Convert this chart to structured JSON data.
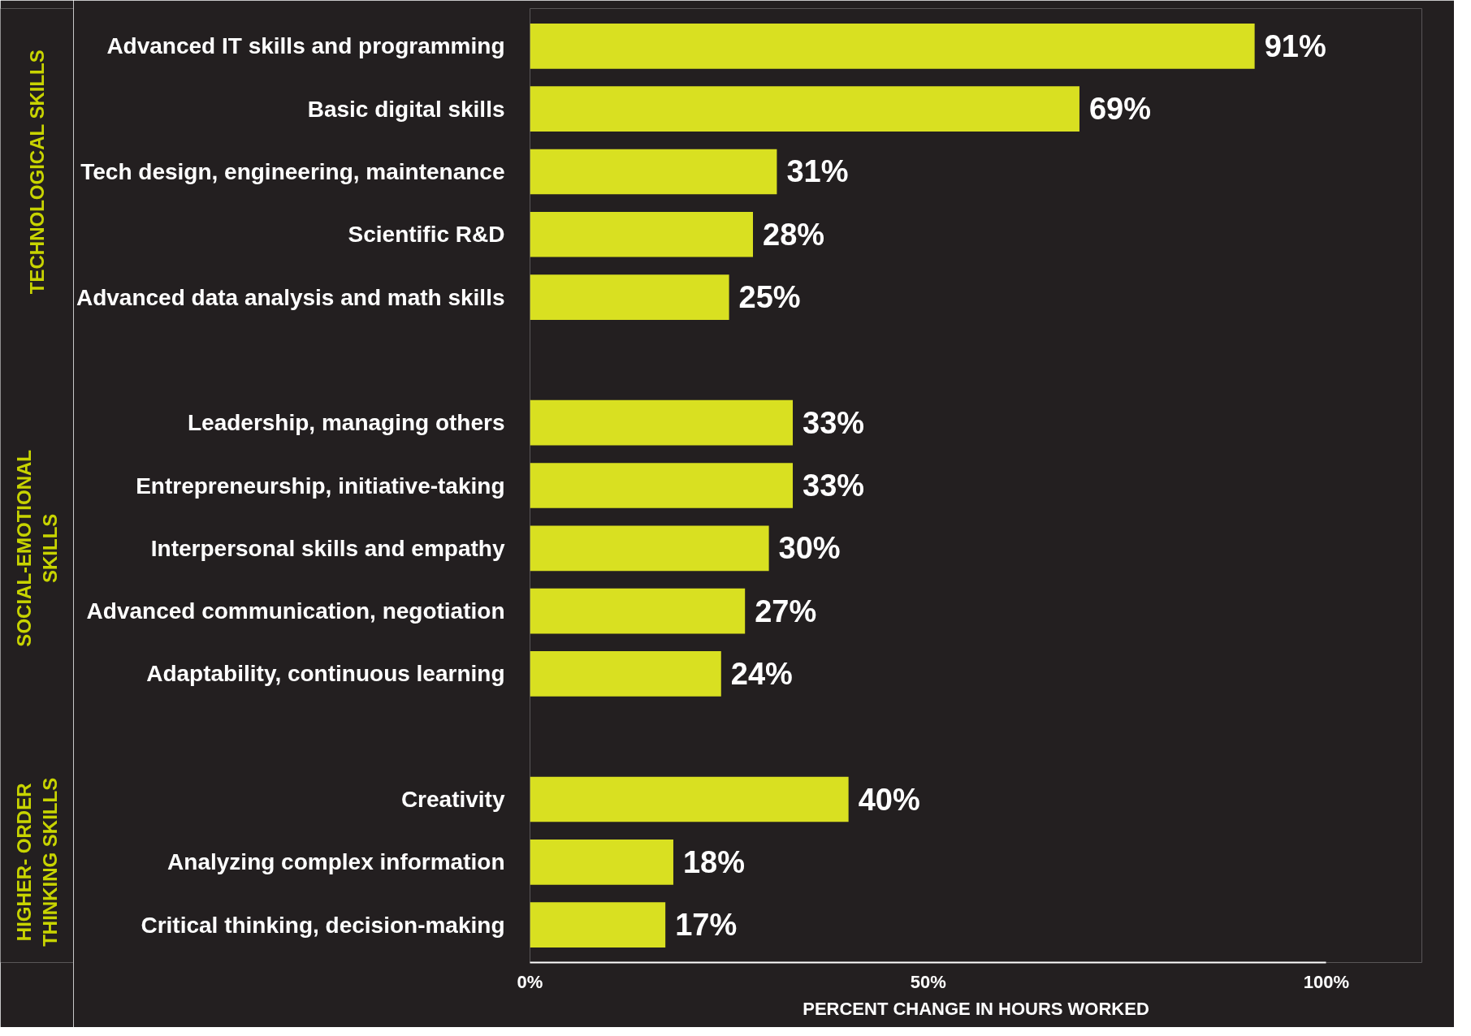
{
  "chart_data": {
    "type": "bar",
    "orientation": "horizontal",
    "xlabel": "PERCENT CHANGE IN HOURS WORKED",
    "categories": [
      "Advanced IT skills and programming",
      "Basic digital skills",
      "Tech design, engineering, maintenance",
      "Scientific R&D",
      "Advanced data analysis and math skills",
      null,
      "Leadership, managing others",
      "Entrepreneurship, initiative-taking",
      "Interpersonal skills and empathy",
      "Advanced communication, negotiation",
      "Adaptability, continuous learning",
      null,
      "Creativity",
      "Analyzing complex information",
      "Critical thinking, decision-making"
    ],
    "values": [
      91,
      69,
      31,
      28,
      25,
      null,
      33,
      33,
      30,
      27,
      24,
      null,
      40,
      18,
      17
    ],
    "value_labels": [
      "91%",
      "69%",
      "31%",
      "28%",
      "25%",
      null,
      "33%",
      "33%",
      "30%",
      "27%",
      "24%",
      null,
      "40%",
      "18%",
      "17%"
    ],
    "color": "#d9e021",
    "xlim": [
      0,
      112
    ],
    "xticks": [
      {
        "value": 0,
        "label": "0%"
      },
      {
        "value": 50,
        "label": "50%"
      },
      {
        "value": 100,
        "label": "100%"
      }
    ],
    "annotations": [
      "TECHNOLOGICAL SKILLS",
      "SOCIAL-EMOTIONAL\nSKILLS",
      "HIGHER- ORDER\nTHINKING SKILLS"
    ],
    "grid": false
  }
}
